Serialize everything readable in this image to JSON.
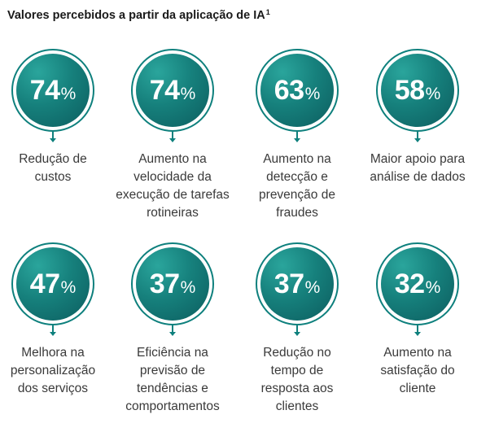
{
  "title": "Valores percebidos a partir da aplicação de IA",
  "title_note": "1",
  "colors": {
    "teal": "#0e807d",
    "teal_dark": "#0c5d5f"
  },
  "stats": [
    {
      "value": "74",
      "unit": "%",
      "label": "Redução de\ncustos"
    },
    {
      "value": "74",
      "unit": "%",
      "label": "Aumento na\nvelocidade da\nexecução de tarefas\nrotineiras"
    },
    {
      "value": "63",
      "unit": "%",
      "label": "Aumento na\ndetecção e\nprevenção de\nfraudes"
    },
    {
      "value": "58",
      "unit": "%",
      "label": "Maior apoio para\nanálise de dados"
    },
    {
      "value": "47",
      "unit": "%",
      "label": "Melhora na\npersonalização\ndos serviços"
    },
    {
      "value": "37",
      "unit": "%",
      "label": "Eficiência na\nprevisão de\ntendências e\ncomportamentos"
    },
    {
      "value": "37",
      "unit": "%",
      "label": "Redução no\ntempo de\nresposta aos\nclientes"
    },
    {
      "value": "32",
      "unit": "%",
      "label": "Aumento na\nsatisfação do\ncliente"
    }
  ]
}
